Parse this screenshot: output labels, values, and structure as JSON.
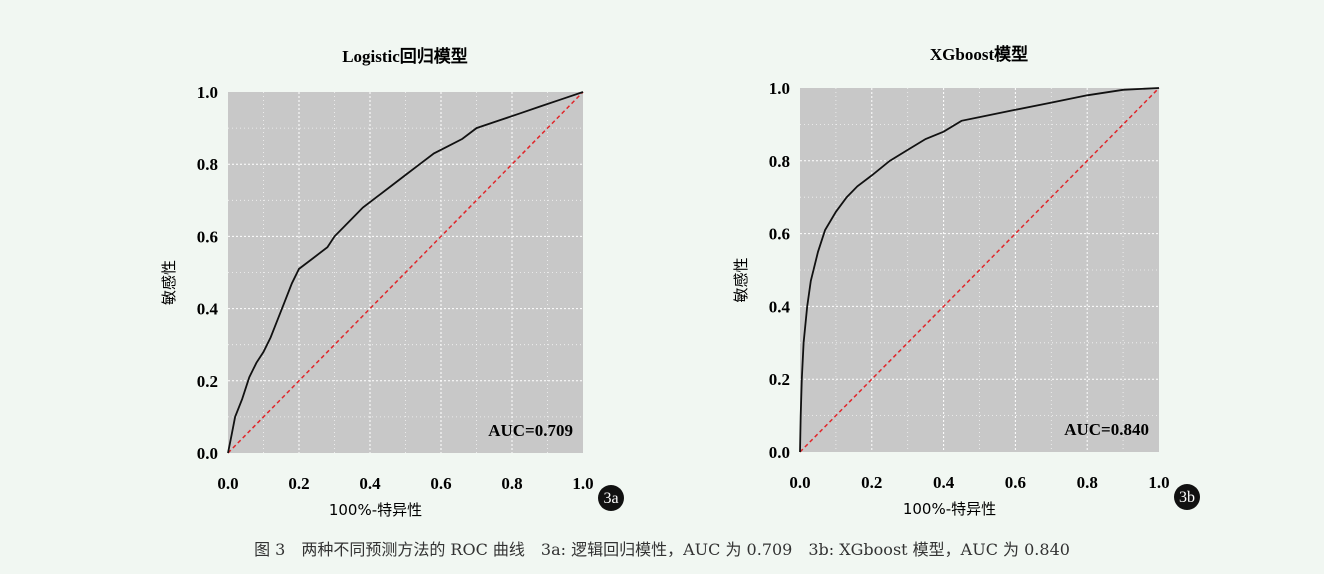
{
  "chart_data": [
    {
      "type": "line",
      "title": "Logistic回归模型",
      "xlabel": "100%-特异性",
      "ylabel": "敏感性",
      "xlim": [
        0,
        1
      ],
      "ylim": [
        0,
        1
      ],
      "xticks": [
        "0.0",
        "0.2",
        "0.4",
        "0.6",
        "0.8",
        "1.0"
      ],
      "yticks": [
        "0.0",
        "0.2",
        "0.4",
        "0.6",
        "0.8",
        "1.0"
      ],
      "grid": true,
      "annotation": "AUC=0.709",
      "badge": "3a",
      "series": [
        {
          "values": [
            [
              0.0,
              0.0
            ],
            [
              0.01,
              0.05
            ],
            [
              0.02,
              0.1
            ],
            [
              0.04,
              0.15
            ],
            [
              0.06,
              0.21
            ],
            [
              0.08,
              0.25
            ],
            [
              0.1,
              0.28
            ],
            [
              0.12,
              0.32
            ],
            [
              0.14,
              0.37
            ],
            [
              0.16,
              0.42
            ],
            [
              0.18,
              0.47
            ],
            [
              0.2,
              0.51
            ],
            [
              0.24,
              0.54
            ],
            [
              0.28,
              0.57
            ],
            [
              0.3,
              0.6
            ],
            [
              0.34,
              0.64
            ],
            [
              0.38,
              0.68
            ],
            [
              0.42,
              0.71
            ],
            [
              0.46,
              0.74
            ],
            [
              0.5,
              0.77
            ],
            [
              0.54,
              0.8
            ],
            [
              0.58,
              0.83
            ],
            [
              0.62,
              0.85
            ],
            [
              0.66,
              0.87
            ],
            [
              0.7,
              0.9
            ],
            [
              0.76,
              0.92
            ],
            [
              0.82,
              0.94
            ],
            [
              0.88,
              0.96
            ],
            [
              0.94,
              0.98
            ],
            [
              1.0,
              1.0
            ]
          ]
        },
        {
          "values": [
            [
              0.0,
              0.0
            ],
            [
              1.0,
              1.0
            ]
          ]
        }
      ]
    },
    {
      "type": "line",
      "title": "XGboost模型",
      "xlabel": "100%-特异性",
      "ylabel": "敏感性",
      "xlim": [
        0,
        1
      ],
      "ylim": [
        0,
        1
      ],
      "xticks": [
        "0.0",
        "0.2",
        "0.4",
        "0.6",
        "0.8",
        "1.0"
      ],
      "yticks": [
        "0.0",
        "0.2",
        "0.4",
        "0.6",
        "0.8",
        "1.0"
      ],
      "grid": true,
      "annotation": "AUC=0.840",
      "badge": "3b",
      "series": [
        {
          "values": [
            [
              0.0,
              0.0
            ],
            [
              0.002,
              0.1
            ],
            [
              0.005,
              0.2
            ],
            [
              0.01,
              0.3
            ],
            [
              0.02,
              0.4
            ],
            [
              0.03,
              0.47
            ],
            [
              0.05,
              0.55
            ],
            [
              0.07,
              0.61
            ],
            [
              0.1,
              0.66
            ],
            [
              0.13,
              0.7
            ],
            [
              0.16,
              0.73
            ],
            [
              0.2,
              0.76
            ],
            [
              0.25,
              0.8
            ],
            [
              0.3,
              0.83
            ],
            [
              0.35,
              0.86
            ],
            [
              0.4,
              0.88
            ],
            [
              0.45,
              0.91
            ],
            [
              0.5,
              0.92
            ],
            [
              0.6,
              0.94
            ],
            [
              0.7,
              0.96
            ],
            [
              0.8,
              0.98
            ],
            [
              0.9,
              0.995
            ],
            [
              1.0,
              1.0
            ]
          ]
        },
        {
          "values": [
            [
              0.0,
              0.0
            ],
            [
              1.0,
              1.0
            ]
          ]
        }
      ]
    }
  ],
  "caption": "图 3　两种不同预测方法的 ROC 曲线　3a: 逻辑回归模性，AUC 为 0.709　3b: XGboost 模型，AUC 为 0.840",
  "colors": {
    "page_background": "#f1f7f2",
    "plot_background": "#c8c8c8",
    "roc_line": "#111111",
    "diagonal_line": "#e0262a"
  }
}
